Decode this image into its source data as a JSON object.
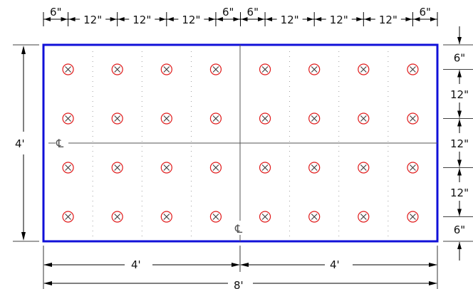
{
  "dimensions": {
    "top": [
      "6\"",
      "12\"",
      "12\"",
      "12\"",
      "6\"",
      "6\"",
      "12\"",
      "12\"",
      "12\"",
      "6\""
    ],
    "right": [
      "6\"",
      "12\"",
      "12\"",
      "12\"",
      "6\""
    ],
    "left": "4'",
    "bottom_halves": [
      "4'",
      "4'"
    ],
    "bottom_total": "8'"
  },
  "centerline_symbol": "℄",
  "marker": {
    "icon": "circled-x-icon",
    "rows": 4,
    "columns": 8
  },
  "colors": {
    "panel_border": "#1010d8",
    "marker_circle": "#e01a1a",
    "dimension": "#000000",
    "centerline": "#555555"
  }
}
